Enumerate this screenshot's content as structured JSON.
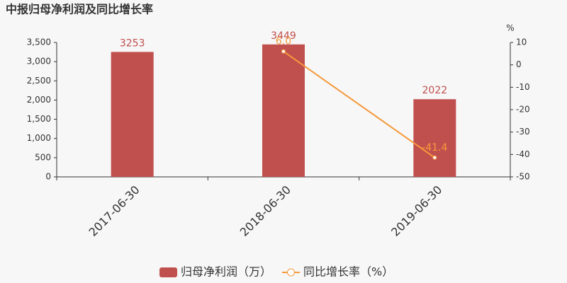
{
  "chart_data": {
    "type": "bar",
    "title": "中报归母净利润及同比增长率",
    "categories": [
      "2017-06-30",
      "2018-06-30",
      "2019-06-30"
    ],
    "series": [
      {
        "name": "归母净利润（万）",
        "color": "#c0504e",
        "values": [
          3253,
          3449,
          2022
        ]
      },
      {
        "name": "同比增长率（%）",
        "color": "#f5993c",
        "type": "line",
        "axis": "y2",
        "values": [
          null,
          6.0,
          -41.4
        ],
        "value_labels": [
          null,
          "6.0",
          "-41.4"
        ]
      }
    ],
    "ylim": [
      0,
      3500
    ],
    "yticks": [
      0,
      {
        "value": 500,
        "label": "500"
      },
      {
        "value": 1000,
        "label": "1,000"
      },
      {
        "value": 1500,
        "label": "1,500"
      },
      {
        "value": 2000,
        "label": "2,000"
      },
      {
        "value": 2500,
        "label": "2,500"
      },
      {
        "value": 3000,
        "label": "3,000"
      },
      {
        "value": 3500,
        "label": "3,500"
      }
    ],
    "y2lim": [
      -50,
      10
    ],
    "y2ticks": [
      -50,
      -40,
      -30,
      -20,
      -10,
      0,
      10
    ],
    "y2_label": "%",
    "grid": false,
    "legend": "bottom"
  }
}
